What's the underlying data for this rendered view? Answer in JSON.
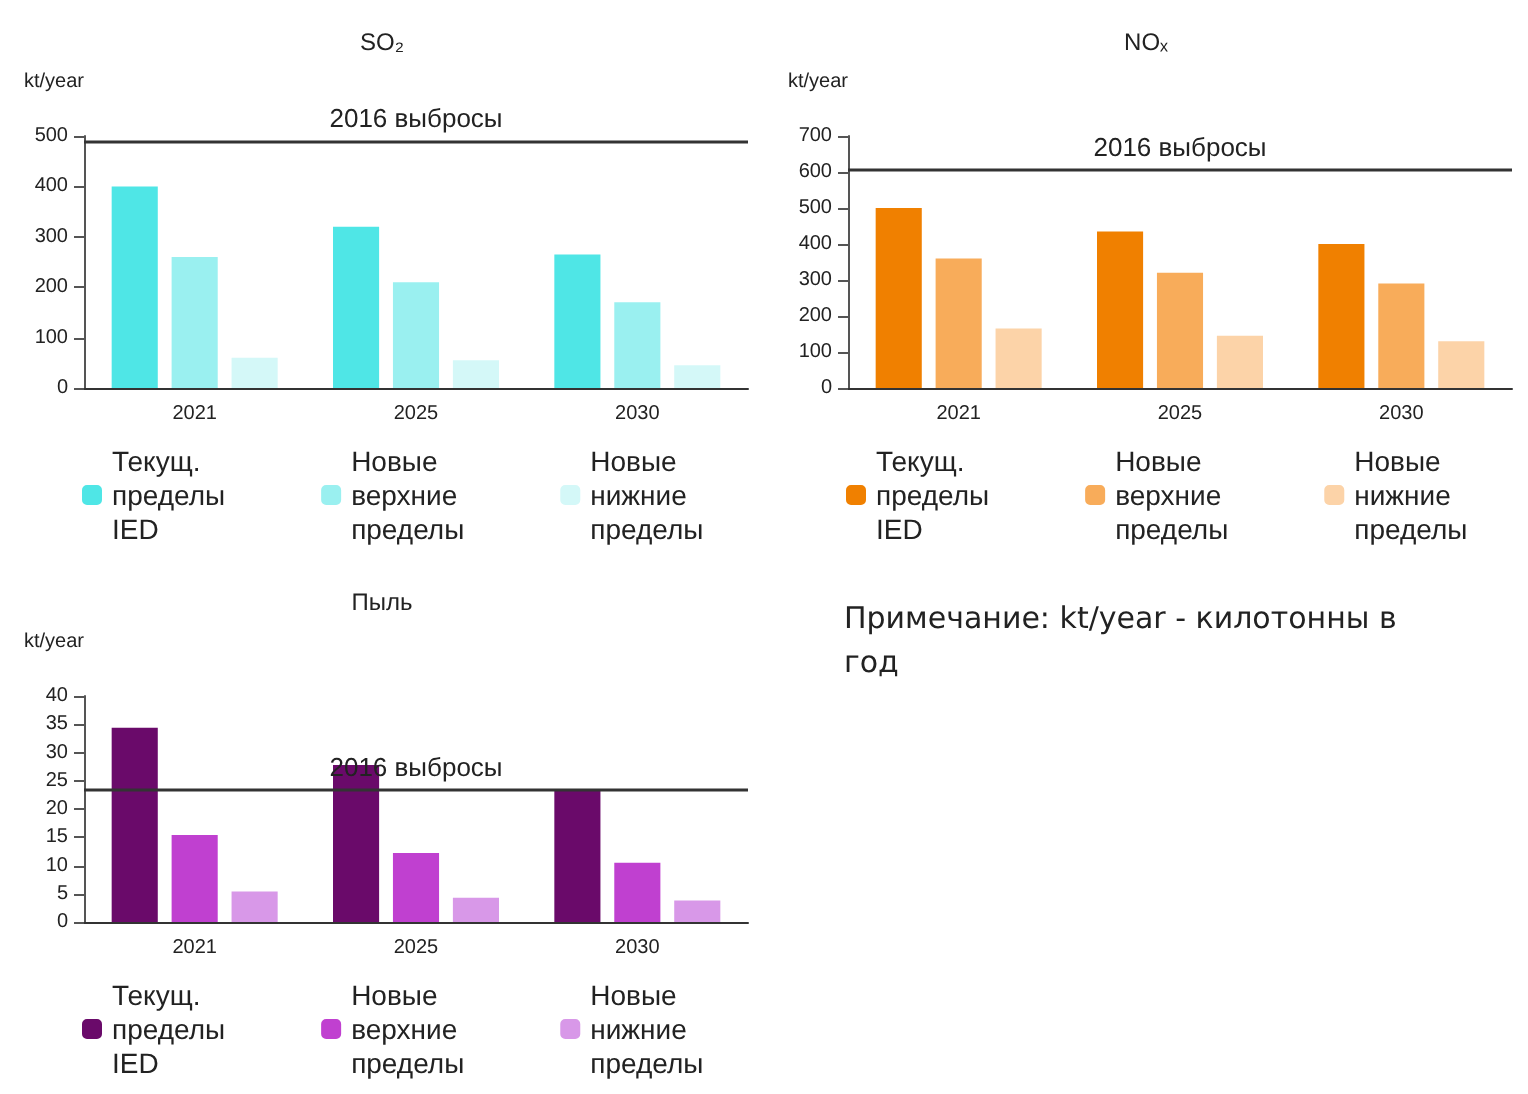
{
  "chart_data": [
    {
      "type": "bar",
      "title": "SO₂",
      "ylabel": "kt/year",
      "categories": [
        "2021",
        "2025",
        "2030"
      ],
      "series": [
        {
          "name": "Текущ. пределы IED",
          "color": "#4fe6e6",
          "values": [
            400,
            320,
            265
          ]
        },
        {
          "name": "Новые верхние пределы",
          "color": "#9af0f0",
          "values": [
            260,
            210,
            170
          ]
        },
        {
          "name": "Новые нижние пределы",
          "color": "#d4f8f8",
          "values": [
            60,
            55,
            45
          ]
        }
      ],
      "ylim": [
        0,
        500
      ],
      "yticks": [
        0,
        100,
        200,
        300,
        400,
        500
      ],
      "grid": false,
      "legend": "bottom",
      "ref_lines": [
        {
          "axis": "y",
          "value": 490,
          "label": "2016 выбросы",
          "color": "#333333"
        }
      ]
    },
    {
      "type": "bar",
      "title": "NOₓ",
      "ylabel": "kt/year",
      "categories": [
        "2021",
        "2025",
        "2030"
      ],
      "series": [
        {
          "name": "Текущ. пределы IED",
          "color": "#f08000",
          "values": [
            500,
            435,
            400
          ]
        },
        {
          "name": "Новые верхние пределы",
          "color": "#f8ac5a",
          "values": [
            360,
            320,
            290
          ]
        },
        {
          "name": "Новые нижние пределы",
          "color": "#fcd3a8",
          "values": [
            165,
            145,
            130
          ]
        }
      ],
      "ylim": [
        0,
        700
      ],
      "yticks": [
        0,
        100,
        200,
        300,
        400,
        500,
        600,
        700
      ],
      "grid": false,
      "legend": "bottom",
      "ref_lines": [
        {
          "axis": "y",
          "value": 605,
          "label": "2016 выбросы",
          "color": "#333333"
        }
      ]
    },
    {
      "type": "bar",
      "title": "Пыль",
      "ylabel": "kt/year",
      "categories": [
        "2021",
        "2025",
        "2030"
      ],
      "series": [
        {
          "name": "Текущ. пределы IED",
          "color": "#6a0a6a",
          "values": [
            34.4,
            27.8,
            23.2
          ]
        },
        {
          "name": "Новые верхние пределы",
          "color": "#c040d0",
          "values": [
            15.4,
            12.2,
            10.5
          ]
        },
        {
          "name": "Новые нижние пределы",
          "color": "#d898e8",
          "values": [
            5.4,
            4.3,
            3.8
          ]
        }
      ],
      "ylim": [
        0,
        40
      ],
      "yticks": [
        0,
        5,
        10,
        15,
        20,
        25,
        30,
        35,
        40
      ],
      "grid": false,
      "legend": "bottom",
      "ref_lines": [
        {
          "axis": "y",
          "value": 23.4,
          "label": "2016 выбросы",
          "color": "#333333"
        }
      ]
    },
    {
      "type": "other",
      "annotations": [
        "Примечание: kt/year - килотонны в год"
      ]
    }
  ]
}
